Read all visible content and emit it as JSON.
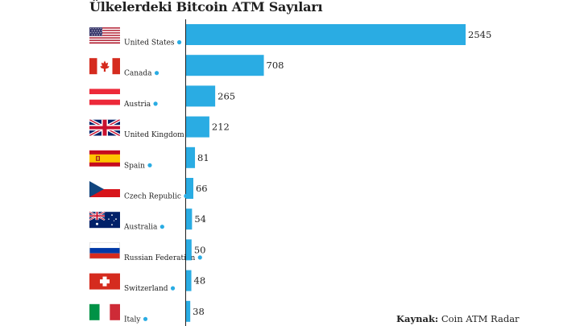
{
  "colors": {
    "bar": "#2aace3",
    "dot": "#2aace3",
    "axis": "#1f1f1f"
  },
  "chart_data": {
    "type": "bar",
    "orientation": "horizontal",
    "title": "Ülkelerdeki Bitcoin ATM Sayıları",
    "categories": [
      "United States",
      "Canada",
      "Austria",
      "United Kingdom",
      "Spain",
      "Czech Republic",
      "Australia",
      "Russian Federation",
      "Switzerland",
      "Italy"
    ],
    "values": [
      2545,
      708,
      265,
      212,
      81,
      66,
      54,
      50,
      48,
      38
    ],
    "flag_icons": [
      "us-flag-icon",
      "canada-flag-icon",
      "austria-flag-icon",
      "uk-flag-icon",
      "spain-flag-icon",
      "czech-flag-icon",
      "australia-flag-icon",
      "russia-flag-icon",
      "switzerland-flag-icon",
      "italy-flag-icon"
    ],
    "xlim": [
      0,
      2545
    ],
    "grid": false,
    "legend": "none"
  },
  "source": {
    "label": "Kaynak:",
    "text": "Coin ATM Radar"
  }
}
